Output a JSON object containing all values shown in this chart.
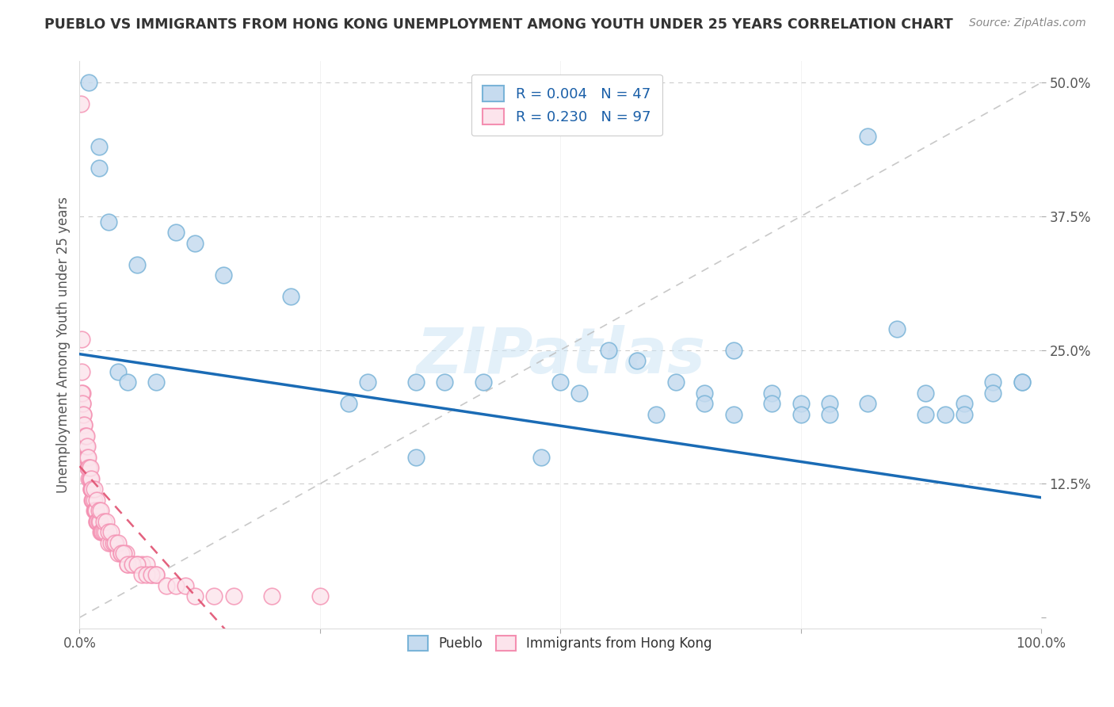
{
  "title": "PUEBLO VS IMMIGRANTS FROM HONG KONG UNEMPLOYMENT AMONG YOUTH UNDER 25 YEARS CORRELATION CHART",
  "source": "Source: ZipAtlas.com",
  "ylabel": "Unemployment Among Youth under 25 years",
  "xlim": [
    0,
    1.0
  ],
  "ylim": [
    -0.01,
    0.52
  ],
  "yticks": [
    0.0,
    0.125,
    0.25,
    0.375,
    0.5
  ],
  "yticklabels": [
    "",
    "12.5%",
    "25.0%",
    "37.5%",
    "50.0%"
  ],
  "xtick_positions": [
    0.0,
    0.25,
    0.5,
    0.75,
    1.0
  ],
  "xticklabels": [
    "0.0%",
    "",
    "",
    "",
    "100.0%"
  ],
  "blue_R": "0.004",
  "blue_N": "47",
  "pink_R": "0.230",
  "pink_N": "97",
  "blue_color": "#7ab4d8",
  "pink_color": "#f48fb1",
  "blue_fill": "#c6dbef",
  "pink_fill": "#fce4ec",
  "legend_color": "#1a5fa8",
  "watermark": "ZIPatlas",
  "blue_trend_color": "#1a6bb5",
  "pink_trend_color": "#e05070",
  "ref_line_color": "#bbbbbb",
  "grid_color": "#cccccc",
  "blue_points_x": [
    0.01,
    0.02,
    0.02,
    0.03,
    0.04,
    0.05,
    0.06,
    0.08,
    0.1,
    0.12,
    0.15,
    0.22,
    0.3,
    0.35,
    0.38,
    0.42,
    0.48,
    0.52,
    0.55,
    0.58,
    0.62,
    0.65,
    0.68,
    0.72,
    0.75,
    0.78,
    0.82,
    0.85,
    0.88,
    0.9,
    0.92,
    0.95,
    0.98,
    0.5,
    0.6,
    0.65,
    0.68,
    0.72,
    0.75,
    0.78,
    0.82,
    0.88,
    0.92,
    0.95,
    0.98,
    0.28,
    0.35
  ],
  "blue_points_y": [
    0.5,
    0.44,
    0.42,
    0.37,
    0.23,
    0.22,
    0.33,
    0.22,
    0.36,
    0.35,
    0.32,
    0.3,
    0.22,
    0.22,
    0.22,
    0.22,
    0.15,
    0.21,
    0.25,
    0.24,
    0.22,
    0.21,
    0.25,
    0.21,
    0.2,
    0.2,
    0.45,
    0.27,
    0.21,
    0.19,
    0.2,
    0.22,
    0.22,
    0.22,
    0.19,
    0.2,
    0.19,
    0.2,
    0.19,
    0.19,
    0.2,
    0.19,
    0.19,
    0.21,
    0.22,
    0.2,
    0.15
  ],
  "pink_points_x": [
    0.001,
    0.002,
    0.002,
    0.003,
    0.003,
    0.004,
    0.004,
    0.005,
    0.005,
    0.006,
    0.006,
    0.007,
    0.007,
    0.008,
    0.008,
    0.009,
    0.009,
    0.01,
    0.01,
    0.011,
    0.011,
    0.012,
    0.012,
    0.013,
    0.013,
    0.014,
    0.014,
    0.015,
    0.015,
    0.016,
    0.016,
    0.017,
    0.017,
    0.018,
    0.018,
    0.019,
    0.02,
    0.021,
    0.022,
    0.023,
    0.024,
    0.025,
    0.027,
    0.03,
    0.033,
    0.035,
    0.038,
    0.04,
    0.043,
    0.045,
    0.048,
    0.05,
    0.055,
    0.06,
    0.065,
    0.07,
    0.075,
    0.08,
    0.002,
    0.003,
    0.004,
    0.005,
    0.006,
    0.007,
    0.008,
    0.009,
    0.01,
    0.011,
    0.012,
    0.013,
    0.015,
    0.018,
    0.02,
    0.022,
    0.025,
    0.028,
    0.03,
    0.033,
    0.037,
    0.04,
    0.043,
    0.046,
    0.05,
    0.055,
    0.06,
    0.065,
    0.07,
    0.075,
    0.08,
    0.09,
    0.1,
    0.11,
    0.12,
    0.14,
    0.16,
    0.2,
    0.25
  ],
  "pink_points_y": [
    0.48,
    0.26,
    0.23,
    0.21,
    0.2,
    0.19,
    0.18,
    0.18,
    0.17,
    0.17,
    0.16,
    0.16,
    0.15,
    0.15,
    0.15,
    0.14,
    0.14,
    0.14,
    0.13,
    0.13,
    0.13,
    0.12,
    0.12,
    0.12,
    0.11,
    0.11,
    0.11,
    0.11,
    0.1,
    0.1,
    0.1,
    0.1,
    0.1,
    0.09,
    0.09,
    0.09,
    0.09,
    0.09,
    0.08,
    0.08,
    0.08,
    0.08,
    0.08,
    0.07,
    0.07,
    0.07,
    0.07,
    0.06,
    0.06,
    0.06,
    0.06,
    0.05,
    0.05,
    0.05,
    0.05,
    0.05,
    0.04,
    0.04,
    0.21,
    0.2,
    0.19,
    0.18,
    0.17,
    0.17,
    0.16,
    0.15,
    0.14,
    0.14,
    0.13,
    0.12,
    0.12,
    0.11,
    0.1,
    0.1,
    0.09,
    0.09,
    0.08,
    0.08,
    0.07,
    0.07,
    0.06,
    0.06,
    0.05,
    0.05,
    0.05,
    0.04,
    0.04,
    0.04,
    0.04,
    0.03,
    0.03,
    0.03,
    0.02,
    0.02,
    0.02,
    0.02,
    0.02
  ]
}
